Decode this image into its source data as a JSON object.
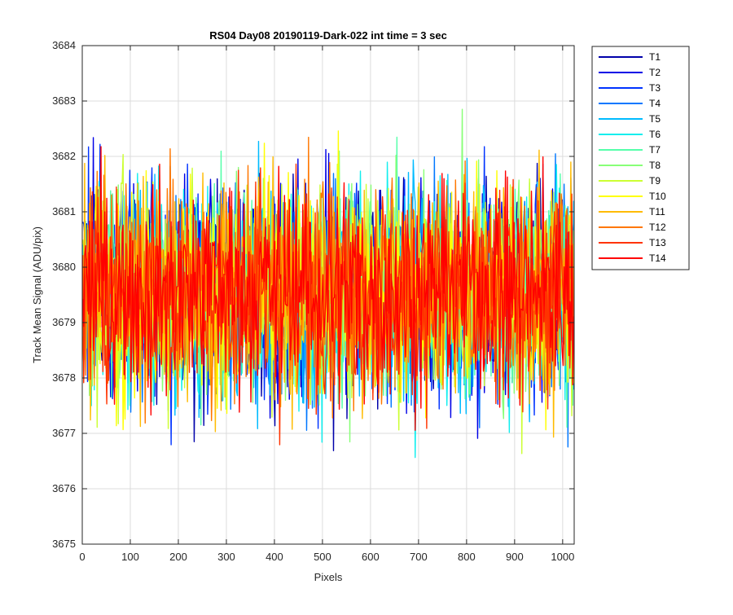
{
  "chart_data": {
    "type": "line",
    "title": "RS04 Day08 20190119-Dark-022 int time = 3 sec",
    "xlabel": "Pixels",
    "ylabel": "Track Mean Signal (ADU/pix)",
    "xlim": [
      0,
      1024
    ],
    "ylim": [
      3675,
      3684
    ],
    "xticks": [
      0,
      100,
      200,
      300,
      400,
      500,
      600,
      700,
      800,
      900,
      1000
    ],
    "yticks": [
      3675,
      3676,
      3677,
      3678,
      3679,
      3680,
      3681,
      3682,
      3683,
      3684
    ],
    "grid": true,
    "legend_position": "outside-top-right",
    "series_center": 3679.6,
    "series_noise_sigma": 0.95,
    "series": [
      {
        "name": "T1",
        "color": "#0000AA"
      },
      {
        "name": "T2",
        "color": "#0000E6"
      },
      {
        "name": "T3",
        "color": "#0033FF"
      },
      {
        "name": "T4",
        "color": "#0077FF"
      },
      {
        "name": "T5",
        "color": "#00BBFF"
      },
      {
        "name": "T6",
        "color": "#11EEEE"
      },
      {
        "name": "T7",
        "color": "#55FFAA"
      },
      {
        "name": "T8",
        "color": "#88FF77"
      },
      {
        "name": "T9",
        "color": "#CCFF33"
      },
      {
        "name": "T10",
        "color": "#FFFF00"
      },
      {
        "name": "T11",
        "color": "#FFBB00"
      },
      {
        "name": "T12",
        "color": "#FF7700"
      },
      {
        "name": "T13",
        "color": "#FF3300"
      },
      {
        "name": "T14",
        "color": "#FF0000"
      }
    ]
  }
}
